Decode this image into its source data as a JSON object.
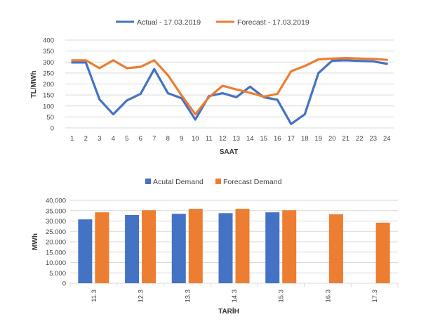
{
  "chart_data": [
    {
      "type": "line",
      "title": "",
      "xlabel": "SAAT",
      "ylabel": "TL/MWh",
      "ylim": [
        0,
        400
      ],
      "yticks": [
        "0",
        "50",
        "100",
        "150",
        "200",
        "250",
        "300",
        "350",
        "400"
      ],
      "x": [
        "1",
        "2",
        "3",
        "4",
        "5",
        "6",
        "7",
        "8",
        "9",
        "10",
        "11",
        "12",
        "13",
        "14",
        "15",
        "16",
        "17",
        "18",
        "19",
        "20",
        "21",
        "22",
        "23",
        "24"
      ],
      "grid": true,
      "legend": "top-center",
      "series": [
        {
          "name": "Actual - 17.03.2019",
          "color": "#4472C4",
          "values": [
            298,
            298,
            130,
            62,
            125,
            155,
            268,
            158,
            135,
            38,
            145,
            158,
            140,
            188,
            140,
            128,
            18,
            62,
            250,
            306,
            308,
            305,
            303,
            292
          ]
        },
        {
          "name": "Forecast - 17.03.2019",
          "color": "#ED7D31",
          "values": [
            308,
            308,
            272,
            308,
            272,
            278,
            308,
            240,
            148,
            62,
            140,
            192,
            175,
            160,
            142,
            155,
            258,
            282,
            312,
            316,
            318,
            316,
            314,
            310
          ]
        }
      ]
    },
    {
      "type": "bar",
      "title": "",
      "xlabel": "TARİH",
      "ylabel": "MWh",
      "ylim": [
        0,
        40000
      ],
      "yticks": [
        "0",
        "5.000",
        "10.000",
        "15.000",
        "20.000",
        "25.000",
        "30.000",
        "35.000",
        "40.000"
      ],
      "categories": [
        "11.3",
        "12.3",
        "13.3",
        "14.3",
        "15.3",
        "16.3",
        "17.3"
      ],
      "grid": true,
      "legend": "top-center",
      "series": [
        {
          "name": "Acutal Demand",
          "color": "#4472C4",
          "values": [
            30800,
            32900,
            33500,
            33800,
            34200,
            null,
            null
          ]
        },
        {
          "name": "Forecast Demand",
          "color": "#ED7D31",
          "values": [
            34200,
            35200,
            35900,
            35900,
            35200,
            33300,
            29200
          ]
        }
      ]
    }
  ]
}
